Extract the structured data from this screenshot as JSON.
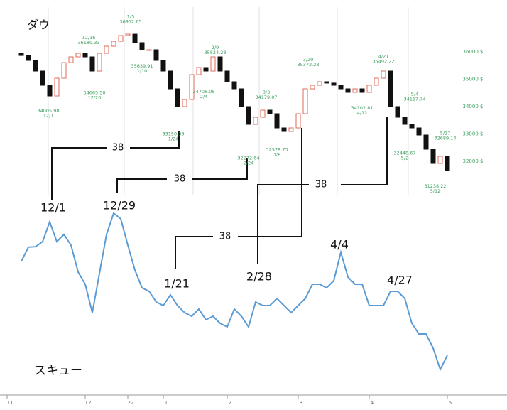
{
  "chart_data": [
    {
      "type": "candlestick",
      "title": "ダウ",
      "open": [
        null,
        null,
        35950,
        35870,
        35690,
        35300,
        34780,
        34390,
        35040,
        35610,
        35820,
        35950,
        35820,
        35300,
        35950,
        36210,
        36390,
        36600,
        36650,
        36340,
        36080,
        36080,
        35690,
        35300,
        34650,
        34000,
        34260,
        35170,
        35430,
        35300,
        35820,
        35300,
        34910,
        34650,
        34000,
        33350,
        33610,
        33870,
        33740,
        33220,
        33090,
        33220,
        33740,
        34650,
        34780,
        34910,
        34860,
        34780,
        34650,
        34520,
        34650,
        34520,
        34780,
        35040,
        35300,
        34000,
        33610,
        33350,
        33220,
        32960,
        32440,
        31920,
        32180
      ],
      "close": [
        null,
        null,
        35870,
        35690,
        35300,
        34780,
        34390,
        35040,
        35610,
        35820,
        35950,
        35820,
        35300,
        35950,
        36210,
        36390,
        36600,
        36650,
        36340,
        36080,
        36080,
        35690,
        35300,
        34650,
        34000,
        34260,
        35170,
        35430,
        35300,
        35820,
        35300,
        34910,
        34650,
        34000,
        33350,
        33610,
        33870,
        33740,
        33220,
        33090,
        33220,
        33740,
        34650,
        34780,
        34910,
        34860,
        34780,
        34650,
        34520,
        34650,
        34520,
        34780,
        35040,
        35300,
        34000,
        33610,
        33350,
        33220,
        32960,
        32440,
        31920,
        32180,
        31660
      ],
      "up_color": "#e2685a",
      "down_color": "#111111",
      "ylim": [
        30750,
        37640
      ],
      "yticks": [
        {
          "value": 36000,
          "label": "36000 $"
        },
        {
          "value": 35000,
          "label": "35000 $"
        },
        {
          "value": 34000,
          "label": "34000 $"
        },
        {
          "value": 33000,
          "label": "33000 $"
        },
        {
          "value": 32000,
          "label": "32000 $"
        }
      ],
      "price_marks": [
        {
          "date": "12/1",
          "price": 34005.98
        },
        {
          "date": "12/16",
          "price": 36189.33
        },
        {
          "date": "12/20",
          "price": {
            "value": 34665.5,
            "label": "34665.50"
          }
        },
        {
          "date": "1/5",
          "price": 36952.65
        },
        {
          "date": "1/10",
          "price": 35639.91
        },
        {
          "date": "1/24",
          "price": 33150.33
        },
        {
          "date": "2/4",
          "price": 34708.08
        },
        {
          "date": "2/9",
          "price": 35824.28
        },
        {
          "date": "2/24",
          "price": 32272.64
        },
        {
          "date": "3/3",
          "price": 34179.07
        },
        {
          "date": "3/8",
          "price": 32578.73
        },
        {
          "date": "3/29",
          "price": 35372.28
        },
        {
          "date": "4/12",
          "price": 34102.81
        },
        {
          "date": "4/21",
          "price": 35492.22
        },
        {
          "date": "5/2",
          "price": 32448.67
        },
        {
          "date": "5/4",
          "price": 34117.74
        },
        {
          "date": "5/12",
          "price": 31238.22
        },
        {
          "date": "5/17",
          "price": 32689.14
        }
      ],
      "label_color": "#3d9e5e"
    },
    {
      "type": "line",
      "title": "スキュー",
      "categories": [
        "11",
        null,
        null,
        null,
        null,
        null,
        null,
        null,
        null,
        null,
        null,
        "12",
        null,
        null,
        null,
        null,
        null,
        "22",
        null,
        null,
        null,
        null,
        "1",
        null,
        null,
        null,
        null,
        null,
        null,
        null,
        null,
        "2",
        null,
        null,
        null,
        null,
        null,
        null,
        null,
        null,
        null,
        "3",
        null,
        null,
        null,
        null,
        null,
        null,
        null,
        null,
        null,
        "4",
        null,
        null,
        null,
        null,
        null,
        null,
        null,
        null,
        null,
        null,
        "5"
      ],
      "values": [
        null,
        null,
        141.0,
        144.6,
        144.7,
        146.0,
        151.0,
        146.0,
        147.8,
        145.1,
        138.3,
        135.2,
        128.0,
        137.9,
        147.8,
        153.2,
        151.8,
        145.1,
        138.8,
        134.3,
        133.4,
        130.7,
        129.8,
        132.5,
        129.8,
        128.0,
        127.1,
        128.9,
        126.2,
        127.1,
        125.3,
        124.4,
        128.9,
        127.1,
        124.4,
        130.7,
        129.8,
        129.8,
        131.6,
        129.8,
        128.0,
        129.8,
        131.6,
        135.2,
        135.2,
        134.3,
        136.1,
        143.3,
        137.0,
        135.2,
        135.2,
        129.8,
        129.8,
        129.8,
        133.4,
        133.4,
        131.6,
        125.3,
        122.6,
        122.6,
        119.0,
        113.6,
        117.2
      ],
      "color": "#5b9bd5",
      "ylim": [
        110,
        155
      ]
    }
  ],
  "annotations": {
    "intervals": [
      38,
      38,
      38,
      38
    ],
    "dates": [
      "12/1",
      "12/29",
      "1/21",
      "2/28",
      "4/4",
      "4/27"
    ]
  }
}
